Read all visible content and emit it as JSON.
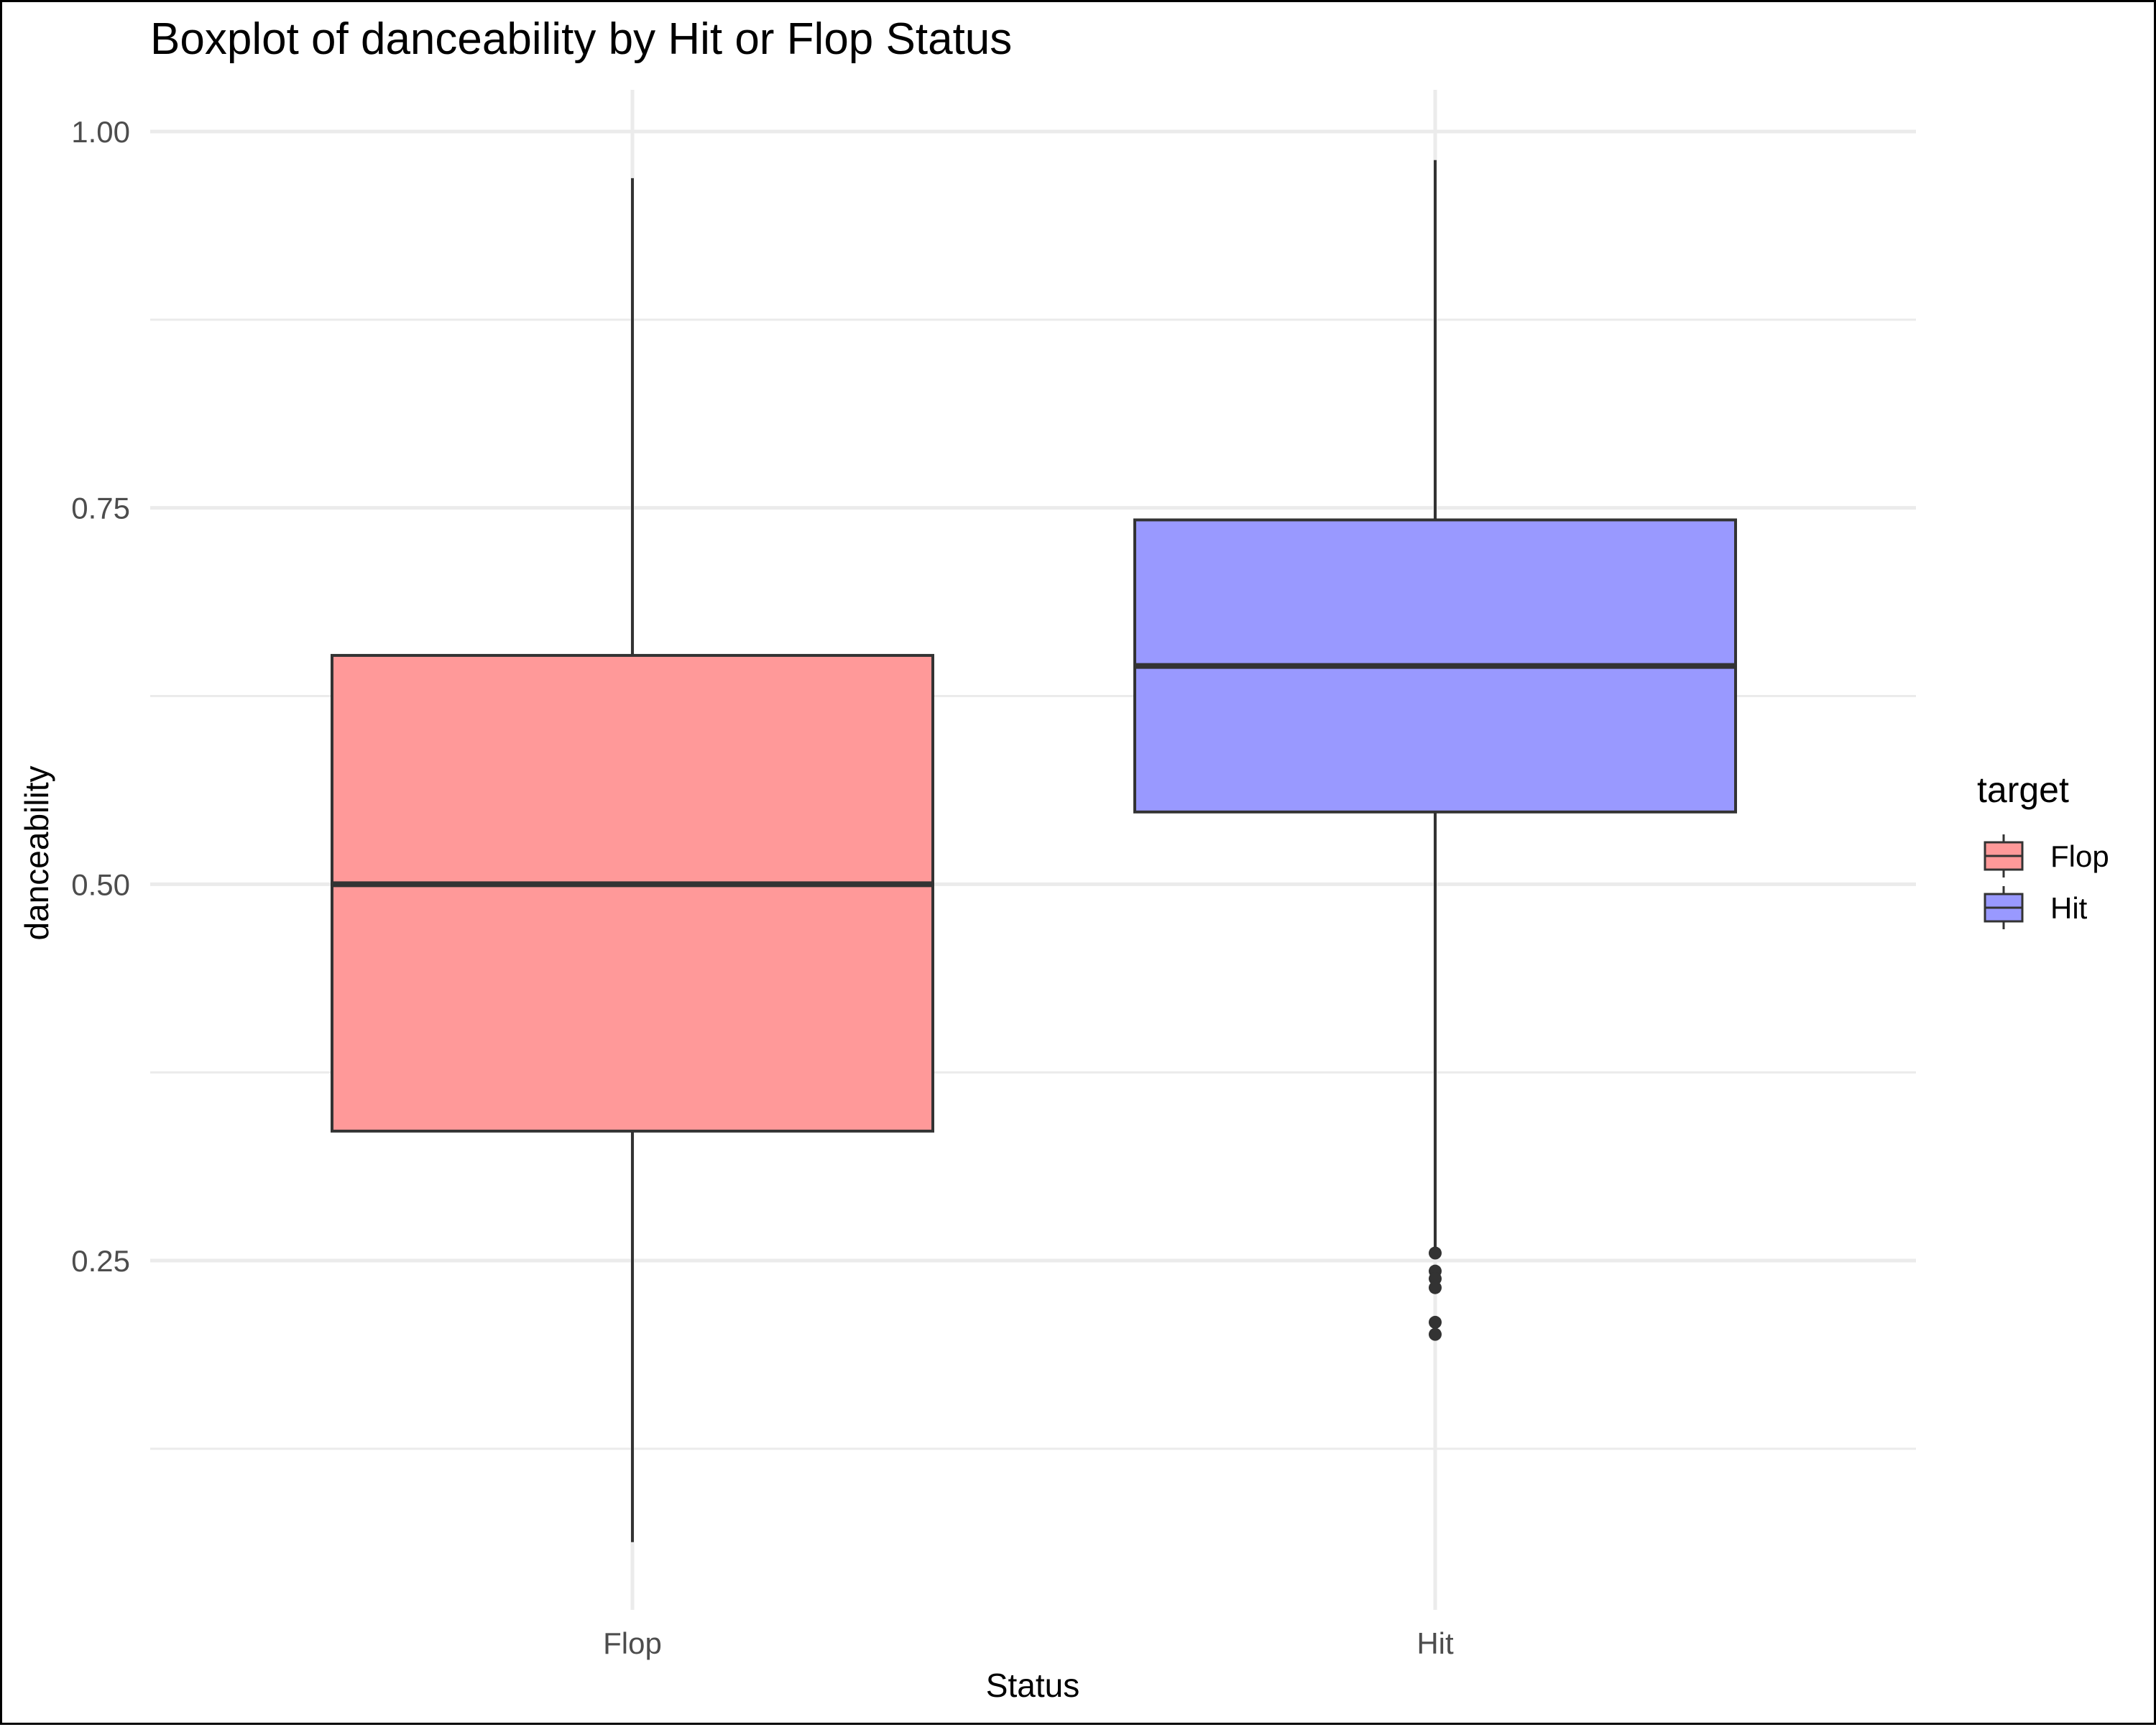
{
  "chart_data": {
    "type": "boxplot",
    "title": "Boxplot of danceability by Hit or Flop Status",
    "xlabel": "Status",
    "ylabel": "danceability",
    "categories": [
      "Flop",
      "Hit"
    ],
    "ylim": [
      0.05,
      1.03
    ],
    "yticks": [
      0.25,
      0.5,
      0.75,
      1.0
    ],
    "ytick_labels": [
      "0.25",
      "0.50",
      "0.75",
      "1.00"
    ],
    "grid": true,
    "legend": {
      "title": "target",
      "position": "right",
      "entries": [
        "Flop",
        "Hit"
      ]
    },
    "colors": {
      "Flop": "#ff9999",
      "Hit": "#9999ff",
      "stroke": "#333333",
      "grid": "#ebebeb"
    },
    "boxes": [
      {
        "name": "Flop",
        "whisker_low": 0.063,
        "q1": 0.336,
        "median": 0.5,
        "q3": 0.652,
        "whisker_high": 0.969,
        "outliers": []
      },
      {
        "name": "Hit",
        "whisker_low": 0.257,
        "q1": 0.548,
        "median": 0.645,
        "q3": 0.742,
        "whisker_high": 0.981,
        "outliers": [
          0.255,
          0.243,
          0.238,
          0.232,
          0.209,
          0.201
        ]
      }
    ]
  }
}
